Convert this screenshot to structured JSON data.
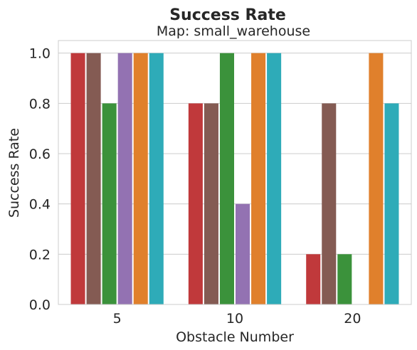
{
  "chart_data": {
    "type": "bar",
    "title": "Success Rate",
    "subtitle": "Map: small_warehouse",
    "xlabel": "Obstacle Number",
    "ylabel": "Success Rate",
    "categories": [
      "5",
      "10",
      "20"
    ],
    "ylim": [
      0,
      1.05
    ],
    "yticks": [
      "0.0",
      "0.2",
      "0.4",
      "0.6",
      "0.8",
      "1.0"
    ],
    "grid": true,
    "series": [
      {
        "color": "#c0393b",
        "values": [
          1.0,
          0.8,
          0.2
        ]
      },
      {
        "color": "#845b53",
        "values": [
          1.0,
          0.8,
          0.8
        ]
      },
      {
        "color": "#3b923b",
        "values": [
          0.8,
          1.0,
          0.2
        ]
      },
      {
        "color": "#9372b2",
        "values": [
          1.0,
          0.4,
          0.0
        ]
      },
      {
        "color": "#e0802c",
        "values": [
          1.0,
          1.0,
          1.0
        ]
      },
      {
        "color": "#2eabb8",
        "values": [
          1.0,
          1.0,
          0.8
        ]
      }
    ]
  }
}
